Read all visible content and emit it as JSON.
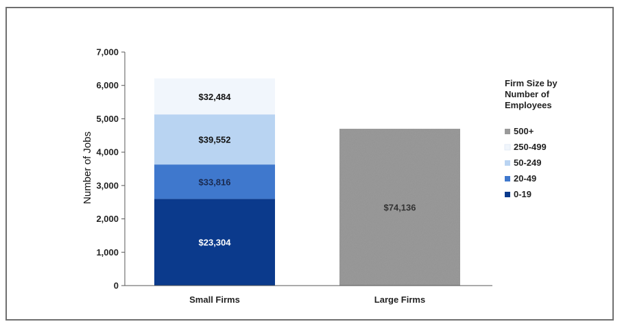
{
  "chart_data": {
    "type": "bar",
    "stacked": true,
    "ylabel": "Number of Jobs",
    "ylim": [
      0,
      7000
    ],
    "yticks": [
      "0",
      "1,000",
      "2,000",
      "3,000",
      "4,000",
      "5,000",
      "6,000",
      "7,000"
    ],
    "categories": [
      "Small Firms",
      "Large Firms"
    ],
    "legend_title": [
      "Firm Size by",
      "Number of",
      "Employees"
    ],
    "legend_position": "right",
    "series": [
      {
        "name": "0-19",
        "color": "#0b3a8c",
        "values": [
          2600,
          0
        ],
        "labels": [
          "$23,304",
          ""
        ],
        "label_color": "#ffffff"
      },
      {
        "name": "20-49",
        "color": "#3f78cd",
        "values": [
          1030,
          0
        ],
        "labels": [
          "$33,816",
          ""
        ],
        "label_color": "#1a2a50"
      },
      {
        "name": "50-249",
        "color": "#b9d4f2",
        "values": [
          1500,
          0
        ],
        "labels": [
          "$39,552",
          ""
        ],
        "label_color": "#111111"
      },
      {
        "name": "250-499",
        "color": "#f1f6fc",
        "values": [
          1080,
          0
        ],
        "labels": [
          "$32,484",
          ""
        ],
        "label_color": "#111111"
      },
      {
        "name": "500+",
        "color": "#9a9a9a",
        "values": [
          0,
          4700
        ],
        "labels": [
          "",
          "$74,136"
        ],
        "label_color": "#333333"
      }
    ],
    "legend_order": [
      "500+",
      "250-499",
      "50-249",
      "20-49",
      "0-19"
    ]
  }
}
